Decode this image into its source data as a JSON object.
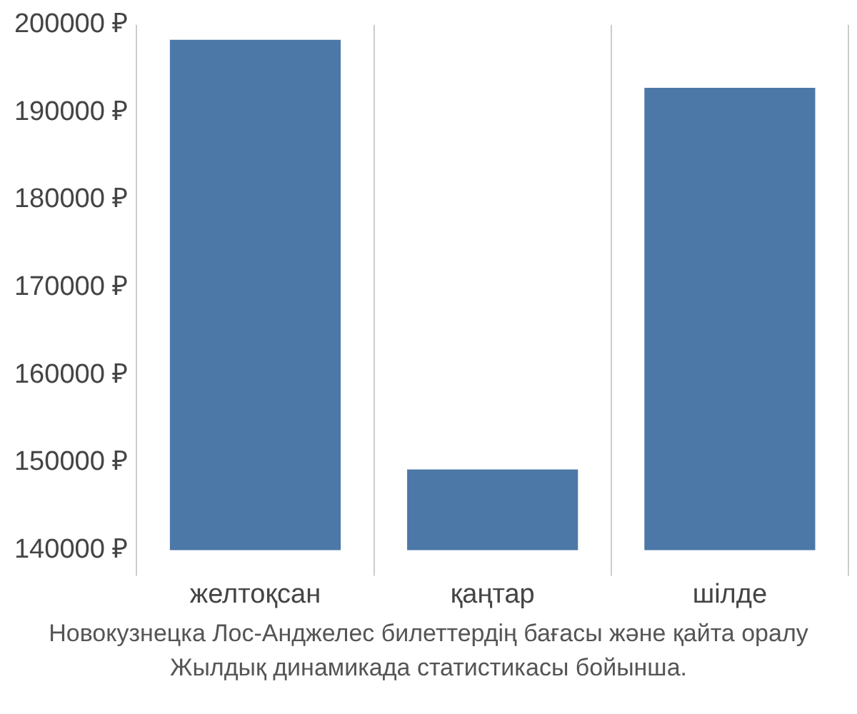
{
  "chart_data": {
    "type": "bar",
    "categories": [
      "желтоқсан",
      "қаңтар",
      "шілде"
    ],
    "values": [
      198300,
      149200,
      192800
    ],
    "color": "#4c78a8",
    "ylim": [
      140000,
      200000
    ],
    "yticks": [
      {
        "value": 140000,
        "label": "140000 ₽"
      },
      {
        "value": 150000,
        "label": "150000 ₽"
      },
      {
        "value": 160000,
        "label": "160000 ₽"
      },
      {
        "value": 170000,
        "label": "170000 ₽"
      },
      {
        "value": 180000,
        "label": "180000 ₽"
      },
      {
        "value": 190000,
        "label": "190000 ₽"
      },
      {
        "value": 200000,
        "label": "200000 ₽"
      }
    ],
    "grid": "x",
    "annotations": [
      "Новокузнецка Лос-Анджелес билеттердің бағасы және қайта оралу",
      "Жылдық динамикада статистикасы бойынша."
    ]
  }
}
